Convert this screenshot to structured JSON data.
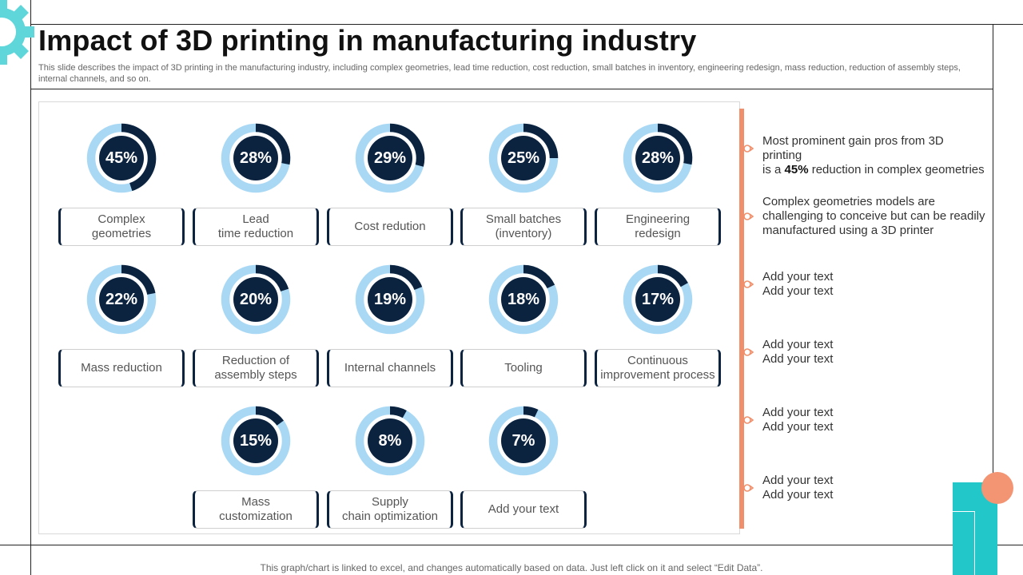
{
  "title": "Impact of 3D printing in manufacturing industry",
  "subtitle": "This slide describes the impact of 3D printing in the manufacturing industry, including complex geometries, lead time reduction, cost reduction, small batches in inventory, engineering redesign, mass reduction, reduction of assembly steps, internal channels, and so on.",
  "colors": {
    "dark_navy": "#0c2340",
    "light_blue": "#a9d8f5",
    "timeline_orange": "#f08f6b",
    "teal": "#22c7c9",
    "gear_teal": "#5fd7da"
  },
  "chart_data": {
    "type": "donut",
    "unit": "%",
    "categories": [
      "Complex\ngeometries",
      "Lead\ntime reduction",
      "Cost redution",
      "Small batches\n(inventory)",
      "Engineering\nredesign",
      "Mass reduction",
      "Reduction of\nassembly steps",
      "Internal channels",
      "Tooling",
      "Continuous\nimprovement process",
      "Mass\ncustomization",
      "Supply\nchain optimization",
      "Add your text"
    ],
    "values": [
      45,
      28,
      29,
      25,
      28,
      22,
      20,
      19,
      18,
      17,
      15,
      8,
      7
    ],
    "value_labels": [
      "45%",
      "28%",
      "29%",
      "25%",
      "28%",
      "22%",
      "20%",
      "19%",
      "18%",
      "17%",
      "15%",
      "8%",
      "7%"
    ],
    "range": [
      0,
      100
    ]
  },
  "notes": [
    {
      "pre": "Most prominent gain pros from 3D printing\nis a ",
      "bold": "45%",
      "post": " reduction in complex geometries"
    },
    {
      "pre": "Complex geometries models are\nchallenging to conceive but can be readily\nmanufactured using a 3D printer",
      "bold": "",
      "post": ""
    },
    {
      "pre": "Add your text\nAdd your text",
      "bold": "",
      "post": ""
    },
    {
      "pre": "Add your text\nAdd your text",
      "bold": "",
      "post": ""
    },
    {
      "pre": "Add your text\nAdd your text",
      "bold": "",
      "post": ""
    },
    {
      "pre": "Add your text\nAdd your text",
      "bold": "",
      "post": ""
    }
  ],
  "footer": "This graph/chart is linked to excel,  and changes automatically based on data. Just left click on it and select “Edit Data”."
}
